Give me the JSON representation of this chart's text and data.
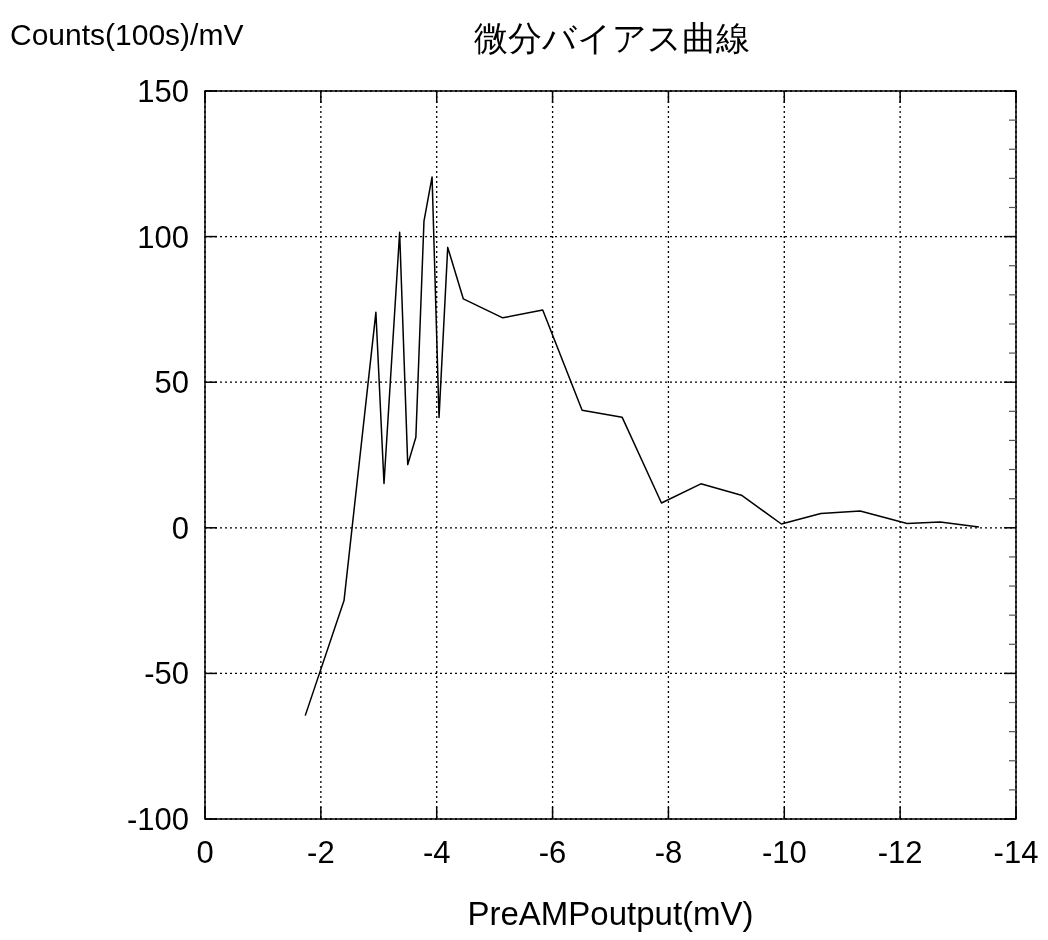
{
  "chart_data": {
    "type": "line",
    "title": "微分バイアス曲線",
    "xlabel": "PreAMPoutput(mV)",
    "ylabel": "Counts(100s)/mV",
    "xlim": [
      0,
      -14
    ],
    "xticks": [
      0,
      -2,
      -4,
      -6,
      -8,
      -10,
      -12,
      -14
    ],
    "ylim": [
      -100,
      150
    ],
    "yticks": [
      -100,
      -50,
      0,
      50,
      100,
      150
    ],
    "grid": true,
    "marker": "none",
    "line_style": "solid",
    "series": [
      {
        "color": "#000000",
        "x": [
          -1.73,
          -2.4,
          -2.95,
          -3.09,
          -3.36,
          -3.5,
          -3.64,
          -3.78,
          -3.92,
          -4.04,
          -4.19,
          -4.46,
          -5.14,
          -5.83,
          -6.51,
          -7.2,
          -7.88,
          -8.56,
          -9.26,
          -9.95,
          -10.63,
          -11.31,
          -12.12,
          -12.69,
          -13.36
        ],
        "values": [
          -64.5,
          -25,
          74,
          15.2,
          101.5,
          21.7,
          31.1,
          105.3,
          120.5,
          37.9,
          96.3,
          78.6,
          72.1,
          74.8,
          40.4,
          38.0,
          8.5,
          15.1,
          11.2,
          1.3,
          4.9,
          5.8,
          1.5,
          2.0,
          0.3
        ]
      }
    ]
  }
}
